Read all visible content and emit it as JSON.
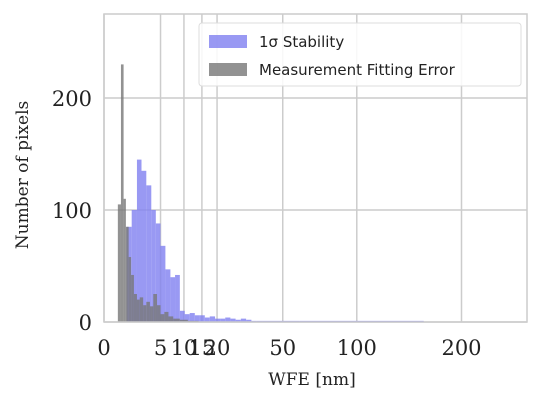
{
  "chart_data": {
    "type": "bar",
    "xlabel": "WFE [nm]",
    "ylabel": "Number of pixels",
    "x_scale": "sqrt",
    "xlim": [
      0,
      280
    ],
    "ylim": [
      0,
      275
    ],
    "x_ticks": [
      0,
      5,
      10,
      15,
      20,
      50,
      100,
      200
    ],
    "x_tick_labels": [
      "0",
      "5",
      "10",
      "15",
      "20",
      "50",
      "100",
      "200"
    ],
    "y_ticks": [
      0,
      100,
      200
    ],
    "y_tick_labels": [
      "0",
      "100",
      "200"
    ],
    "grid": true,
    "legend_position": "top-right",
    "series": [
      {
        "name": "1σ Stability",
        "color": "#8080f0",
        "bins": [
          [
            0.8,
            1.2,
            85
          ],
          [
            1.2,
            1.7,
            100
          ],
          [
            1.7,
            2.2,
            145
          ],
          [
            2.2,
            2.8,
            135
          ],
          [
            2.8,
            3.5,
            122
          ],
          [
            3.5,
            4.2,
            100
          ],
          [
            4.2,
            5.0,
            88
          ],
          [
            5.0,
            5.9,
            68
          ],
          [
            5.9,
            6.9,
            47
          ],
          [
            6.9,
            7.9,
            40
          ],
          [
            7.9,
            9.0,
            42
          ],
          [
            9.0,
            10.2,
            10
          ],
          [
            10.2,
            11.5,
            7
          ],
          [
            11.5,
            12.9,
            8
          ],
          [
            12.9,
            14.3,
            6
          ],
          [
            14.3,
            15.9,
            6
          ],
          [
            15.9,
            17.5,
            4
          ],
          [
            17.5,
            19.3,
            5
          ],
          [
            19.3,
            21.1,
            3
          ],
          [
            21.1,
            23.0,
            3
          ],
          [
            23.0,
            25.0,
            4
          ],
          [
            25.0,
            27.1,
            3
          ],
          [
            27.1,
            29.3,
            2
          ],
          [
            29.3,
            31.6,
            3
          ],
          [
            31.6,
            34.0,
            2
          ],
          [
            34.0,
            36.5,
            1
          ],
          [
            36.5,
            39.1,
            1
          ],
          [
            39.1,
            44.7,
            1
          ],
          [
            44.7,
            60.0,
            1
          ],
          [
            60.0,
            100.0,
            1
          ],
          [
            100.0,
            160.0,
            1
          ]
        ]
      },
      {
        "name": "Measurement Fitting Error",
        "color": "#777777",
        "bins": [
          [
            0.3,
            0.45,
            105
          ],
          [
            0.45,
            0.6,
            230
          ],
          [
            0.6,
            0.75,
            110
          ],
          [
            0.75,
            0.95,
            85
          ],
          [
            0.95,
            1.15,
            58
          ],
          [
            1.15,
            1.4,
            42
          ],
          [
            1.4,
            1.7,
            25
          ],
          [
            1.7,
            2.0,
            20
          ],
          [
            2.0,
            2.4,
            22
          ],
          [
            2.4,
            2.8,
            15
          ],
          [
            2.8,
            3.3,
            18
          ],
          [
            3.3,
            3.8,
            14
          ],
          [
            3.8,
            4.4,
            25
          ],
          [
            4.4,
            5.0,
            15
          ],
          [
            5.0,
            5.7,
            7
          ],
          [
            5.7,
            6.5,
            9
          ],
          [
            6.5,
            7.5,
            5
          ],
          [
            7.5,
            9.0,
            3
          ],
          [
            9.0,
            11.0,
            2
          ],
          [
            11.0,
            14.0,
            1
          ]
        ]
      }
    ]
  }
}
